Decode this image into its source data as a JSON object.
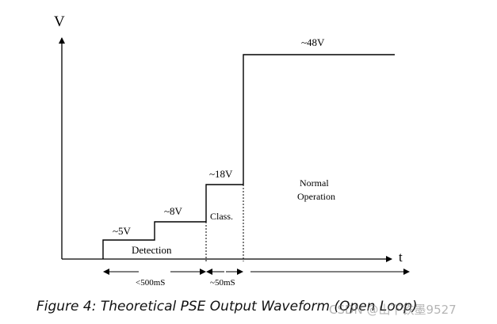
{
  "axes": {
    "y_label": "V",
    "x_label": "t"
  },
  "levels": {
    "detect_low": "~5V",
    "detect_high": "~8V",
    "class": "~18V",
    "operate": "~48V"
  },
  "regions": {
    "detection": "Detection",
    "classification": "Class.",
    "normal_line1": "Normal",
    "normal_line2": "Operation"
  },
  "durations": {
    "detection": "<500mS",
    "classification": "~50mS"
  },
  "caption": "Figure 4: Theoretical PSE Output Waveform (Open Loop)",
  "watermark": "CSDN @山下铁墨9527"
}
